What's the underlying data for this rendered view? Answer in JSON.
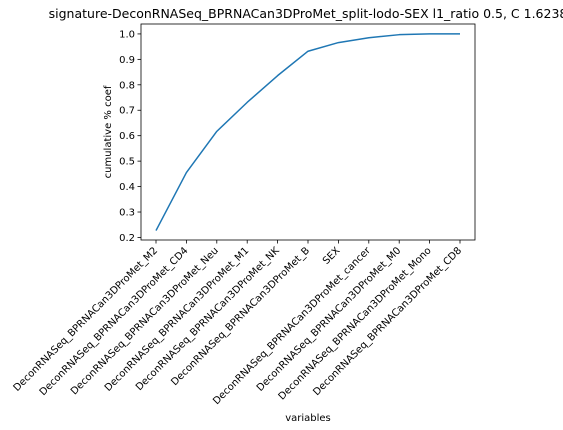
{
  "chart_data": {
    "type": "line",
    "title": "signature-DeconRNASeq_BPRNACan3DProMet_split-lodo-SEX l1_ratio 0.5, C 1.6238",
    "xlabel": "variables",
    "ylabel": "cumulative % coef",
    "categories": [
      "DeconRNASeq_BPRNACan3DProMet_M2",
      "DeconRNASeq_BPRNACan3DProMet_CD4",
      "DeconRNASeq_BPRNACan3DProMet_Neu",
      "DeconRNASeq_BPRNACan3DProMet_M1",
      "DeconRNASeq_BPRNACan3DProMet_NK",
      "DeconRNASeq_BPRNACan3DProMet_B",
      "SEX",
      "DeconRNASeq_BPRNACan3DProMet_cancer",
      "DeconRNASeq_BPRNACan3DProMet_M0",
      "DeconRNASeq_BPRNACan3DProMet_Mono",
      "DeconRNASeq_BPRNACan3DProMet_CD8"
    ],
    "values": [
      0.227,
      0.455,
      0.617,
      0.731,
      0.836,
      0.932,
      0.966,
      0.985,
      0.997,
      1.0,
      1.0
    ],
    "yticks": [
      0.2,
      0.3,
      0.4,
      0.5,
      0.6,
      0.7,
      0.8,
      0.9,
      1.0
    ],
    "ylim": [
      0.19,
      1.039
    ],
    "grid": false,
    "line_color": "#1f77b4"
  }
}
